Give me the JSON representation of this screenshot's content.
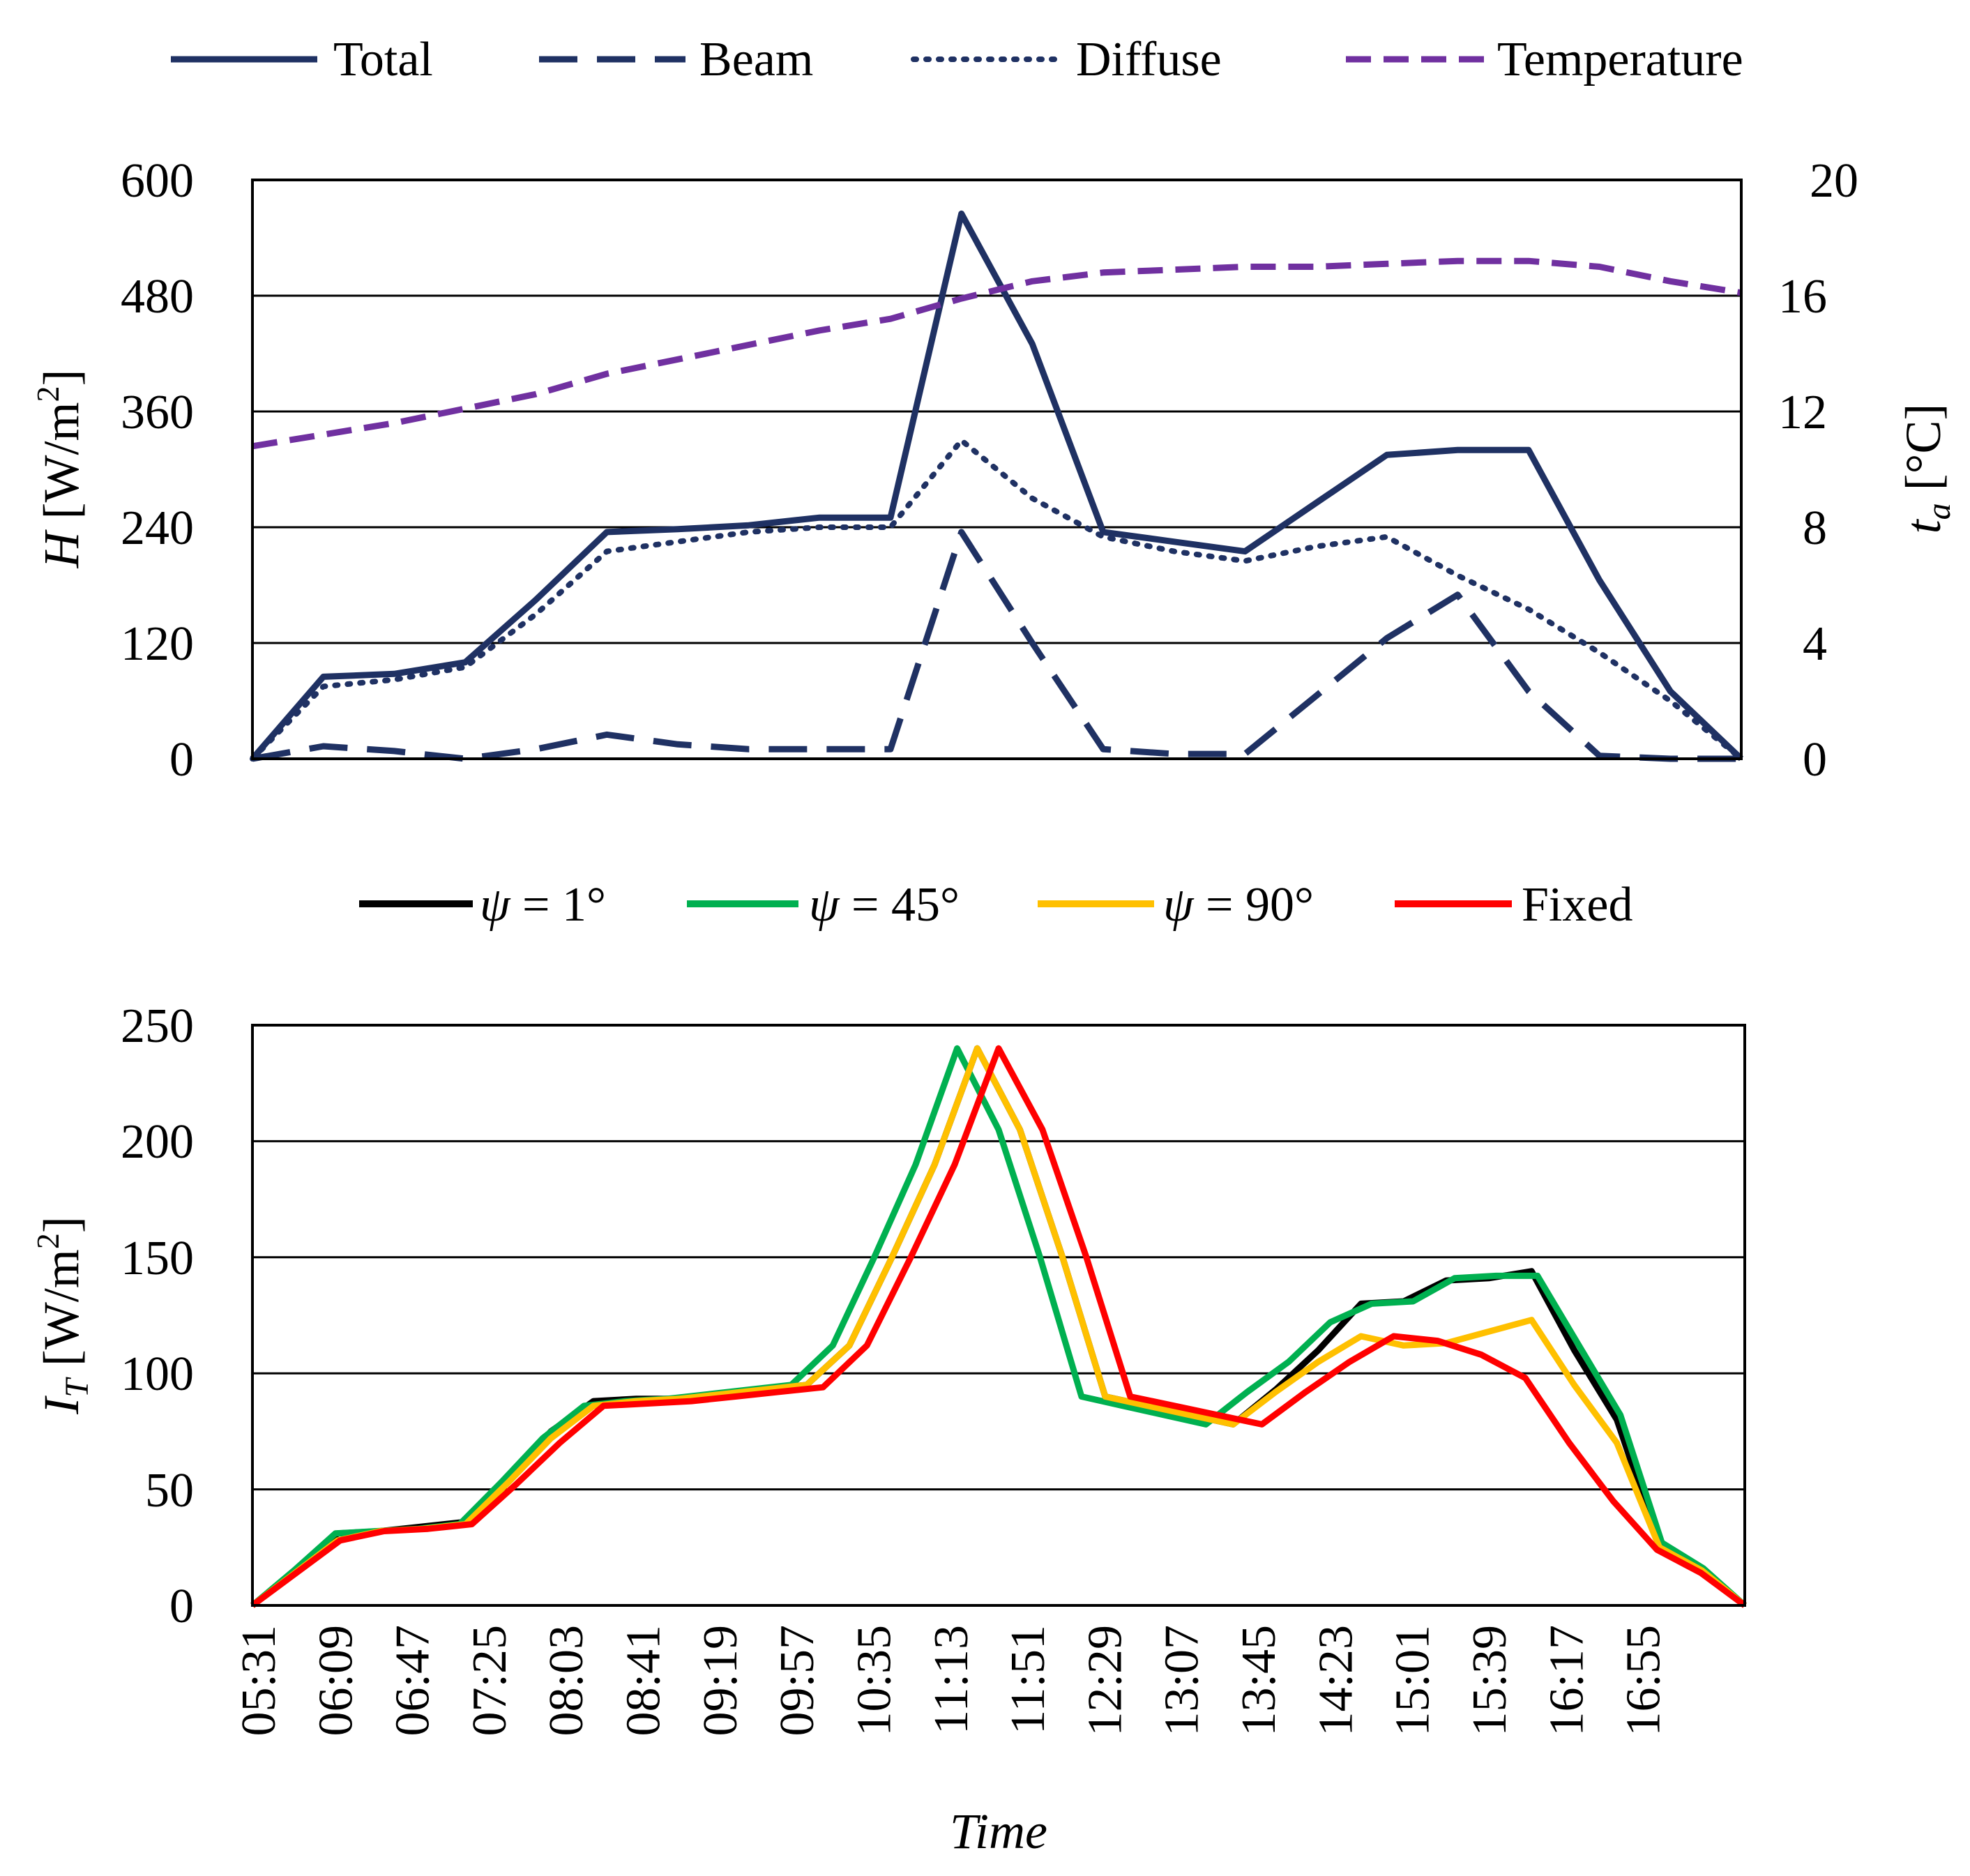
{
  "chart_data": [
    {
      "type": "line",
      "title": "",
      "xlabel": "",
      "ylabel": "H [W/m2]",
      "ylabel_parts": {
        "symbol": "H",
        "unit": "[W/m",
        "sup": "2",
        "close": "]"
      },
      "y2label": "ta [°C]",
      "y2label_parts": {
        "symbol": "t",
        "sub": "a",
        "unit": "[°C]"
      },
      "ylim": [
        0,
        600
      ],
      "y2lim": [
        0,
        20
      ],
      "yticks": [
        "0",
        "120",
        "240",
        "360",
        "480",
        "600"
      ],
      "y2ticks": [
        "0",
        "4",
        "8",
        "12",
        "16",
        "20"
      ],
      "grid": true,
      "legend_position": "top",
      "x_points": 13,
      "series": [
        {
          "name": "Total",
          "axis": "left",
          "style": "solid",
          "color": "#1f3163",
          "points": [
            [
              0,
              0
            ],
            [
              1,
              85
            ],
            [
              2,
              88
            ],
            [
              3,
              100
            ],
            [
              4,
              165
            ],
            [
              5,
              235
            ],
            [
              6,
              238
            ],
            [
              7,
              242
            ],
            [
              8,
              250
            ],
            [
              9,
              250
            ],
            [
              10,
              565
            ],
            [
              11,
              430
            ],
            [
              12,
              235
            ],
            [
              13,
              225
            ],
            [
              14,
              215
            ],
            [
              15,
              265
            ],
            [
              16,
              315
            ],
            [
              17,
              320
            ],
            [
              18,
              320
            ],
            [
              19,
              185
            ],
            [
              20,
              70
            ],
            [
              21,
              0
            ]
          ]
        },
        {
          "name": "Beam",
          "axis": "left",
          "style": "dash",
          "color": "#1f3163",
          "points": [
            [
              0,
              0
            ],
            [
              1,
              13
            ],
            [
              2,
              8
            ],
            [
              3,
              0
            ],
            [
              4,
              10
            ],
            [
              5,
              25
            ],
            [
              6,
              15
            ],
            [
              7,
              10
            ],
            [
              8,
              10
            ],
            [
              9,
              10
            ],
            [
              10,
              235
            ],
            [
              11,
              120
            ],
            [
              12,
              10
            ],
            [
              13,
              5
            ],
            [
              14,
              5
            ],
            [
              15,
              65
            ],
            [
              16,
              125
            ],
            [
              17,
              170
            ],
            [
              18,
              70
            ],
            [
              19,
              3
            ],
            [
              20,
              0
            ],
            [
              21,
              0
            ]
          ]
        },
        {
          "name": "Diffuse",
          "axis": "left",
          "style": "dot",
          "color": "#1f3163",
          "points": [
            [
              0,
              0
            ],
            [
              1,
              75
            ],
            [
              2,
              82
            ],
            [
              3,
              95
            ],
            [
              4,
              150
            ],
            [
              5,
              215
            ],
            [
              6,
              225
            ],
            [
              7,
              235
            ],
            [
              8,
              240
            ],
            [
              9,
              240
            ],
            [
              10,
              330
            ],
            [
              11,
              270
            ],
            [
              12,
              230
            ],
            [
              13,
              215
            ],
            [
              14,
              205
            ],
            [
              15,
              220
            ],
            [
              16,
              230
            ],
            [
              17,
              190
            ],
            [
              18,
              155
            ],
            [
              19,
              110
            ],
            [
              20,
              60
            ],
            [
              21,
              0
            ]
          ]
        },
        {
          "name": "Temperature",
          "axis": "right",
          "style": "shortdash",
          "color": "#7030a0",
          "points": [
            [
              0,
              10.8
            ],
            [
              1,
              11.2
            ],
            [
              2,
              11.6
            ],
            [
              3,
              12.1
            ],
            [
              4,
              12.6
            ],
            [
              5,
              13.3
            ],
            [
              6,
              13.8
            ],
            [
              7,
              14.3
            ],
            [
              8,
              14.8
            ],
            [
              9,
              15.2
            ],
            [
              10,
              15.9
            ],
            [
              11,
              16.5
            ],
            [
              12,
              16.8
            ],
            [
              13,
              16.9
            ],
            [
              14,
              17.0
            ],
            [
              15,
              17.0
            ],
            [
              16,
              17.1
            ],
            [
              17,
              17.2
            ],
            [
              18,
              17.2
            ],
            [
              19,
              17.0
            ],
            [
              20,
              16.5
            ],
            [
              21,
              16.1
            ]
          ]
        }
      ]
    },
    {
      "type": "line",
      "title": "",
      "xlabel": "Time",
      "ylabel": "IT [W/m2]",
      "ylabel_parts": {
        "symbol": "I",
        "sub": "T",
        "unit": "[W/m",
        "sup": "2",
        "close": "]"
      },
      "ylim": [
        0,
        250
      ],
      "yticks": [
        "0",
        "50",
        "100",
        "150",
        "200",
        "250"
      ],
      "grid": true,
      "legend_position": "top",
      "categories": [
        "05:31",
        "06:09",
        "06:47",
        "07:25",
        "08:03",
        "08:41",
        "09:19",
        "09:57",
        "10:35",
        "11:13",
        "11:51",
        "12:29",
        "13:07",
        "13:45",
        "14:23",
        "15:01",
        "15:39",
        "16:17",
        "16:55"
      ],
      "series": [
        {
          "name": "ψ = 1°",
          "legend_symbol": "ψ",
          "legend_value": "= 1°",
          "color": "#000000",
          "points": [
            [
              0,
              0
            ],
            [
              1,
              15
            ],
            [
              2,
              31
            ],
            [
              3,
              32
            ],
            [
              4,
              34
            ],
            [
              5,
              36
            ],
            [
              6,
              55
            ],
            [
              7,
              75
            ],
            [
              8,
              88
            ],
            [
              9,
              89
            ],
            [
              10,
              89
            ],
            [
              11,
              91
            ],
            [
              12,
              93
            ],
            [
              13,
              95
            ],
            [
              14,
              112
            ],
            [
              15,
              150
            ],
            [
              16,
              190
            ],
            [
              17,
              240
            ],
            [
              18,
              205
            ],
            [
              19,
              150
            ],
            [
              20,
              90
            ],
            [
              21,
              86
            ],
            [
              22,
              82
            ],
            [
              23,
              78
            ],
            [
              24,
              93
            ],
            [
              25,
              110
            ],
            [
              26,
              130
            ],
            [
              27,
              131
            ],
            [
              28,
              140
            ],
            [
              29,
              141
            ],
            [
              30,
              144
            ],
            [
              31,
              110
            ],
            [
              32,
              80
            ],
            [
              33,
              26
            ],
            [
              34,
              16
            ],
            [
              35,
              0
            ]
          ]
        },
        {
          "name": "ψ = 45°",
          "legend_symbol": "ψ",
          "legend_value": "= 45°",
          "color": "#00b050",
          "points": [
            [
              0,
              0
            ],
            [
              1,
              15
            ],
            [
              2,
              31
            ],
            [
              3,
              32
            ],
            [
              4,
              33
            ],
            [
              5,
              35
            ],
            [
              6,
              53
            ],
            [
              7,
              72
            ],
            [
              8,
              86
            ],
            [
              9,
              88
            ],
            [
              10,
              89
            ],
            [
              11,
              91
            ],
            [
              12,
              93
            ],
            [
              13,
              95
            ],
            [
              14,
              112
            ],
            [
              15,
              150
            ],
            [
              16,
              190
            ],
            [
              17,
              240
            ],
            [
              18,
              205
            ],
            [
              19,
              150
            ],
            [
              20,
              90
            ],
            [
              21,
              86
            ],
            [
              22,
              82
            ],
            [
              23,
              78
            ],
            [
              24,
              92
            ],
            [
              25,
              105
            ],
            [
              26,
              122
            ],
            [
              27,
              130
            ],
            [
              28,
              131
            ],
            [
              29,
              141
            ],
            [
              30,
              142
            ],
            [
              31,
              142
            ],
            [
              32,
              112
            ],
            [
              33,
              82
            ],
            [
              34,
              27
            ],
            [
              35,
              16
            ],
            [
              36,
              0
            ]
          ]
        },
        {
          "name": "ψ = 90°",
          "legend_symbol": "ψ",
          "legend_value": "= 90°",
          "color": "#ffc000",
          "points": [
            [
              0,
              0
            ],
            [
              1,
              14
            ],
            [
              2,
              28
            ],
            [
              3,
              32
            ],
            [
              4,
              33
            ],
            [
              5,
              35
            ],
            [
              6,
              53
            ],
            [
              7,
              72
            ],
            [
              8,
              86
            ],
            [
              9,
              88
            ],
            [
              10,
              89
            ],
            [
              11,
              91
            ],
            [
              12,
              93
            ],
            [
              13,
              95
            ],
            [
              14,
              112
            ],
            [
              15,
              150
            ],
            [
              16,
              190
            ],
            [
              17,
              240
            ],
            [
              18,
              205
            ],
            [
              19,
              150
            ],
            [
              20,
              90
            ],
            [
              21,
              86
            ],
            [
              22,
              82
            ],
            [
              23,
              78
            ],
            [
              24,
              92
            ],
            [
              25,
              105
            ],
            [
              26,
              116
            ],
            [
              27,
              112
            ],
            [
              28,
              113
            ],
            [
              29,
              118
            ],
            [
              30,
              123
            ],
            [
              31,
              95
            ],
            [
              32,
              70
            ],
            [
              33,
              25
            ],
            [
              34,
              15
            ],
            [
              35,
              0
            ]
          ]
        },
        {
          "name": "Fixed",
          "legend_symbol": "",
          "legend_value": "Fixed",
          "color": "#ff0000",
          "points": [
            [
              0,
              0
            ],
            [
              1,
              14
            ],
            [
              2,
              28
            ],
            [
              3,
              32
            ],
            [
              4,
              33
            ],
            [
              5,
              35
            ],
            [
              6,
              52
            ],
            [
              7,
              70
            ],
            [
              8,
              86
            ],
            [
              9,
              87
            ],
            [
              10,
              88
            ],
            [
              11,
              90
            ],
            [
              12,
              92
            ],
            [
              13,
              94
            ],
            [
              14,
              112
            ],
            [
              15,
              150
            ],
            [
              16,
              190
            ],
            [
              17,
              240
            ],
            [
              18,
              205
            ],
            [
              19,
              150
            ],
            [
              20,
              90
            ],
            [
              21,
              86
            ],
            [
              22,
              82
            ],
            [
              23,
              78
            ],
            [
              24,
              92
            ],
            [
              25,
              105
            ],
            [
              26,
              116
            ],
            [
              27,
              114
            ],
            [
              28,
              108
            ],
            [
              29,
              98
            ],
            [
              30,
              70
            ],
            [
              31,
              45
            ],
            [
              32,
              24
            ],
            [
              33,
              14
            ],
            [
              34,
              0
            ]
          ]
        }
      ]
    }
  ]
}
